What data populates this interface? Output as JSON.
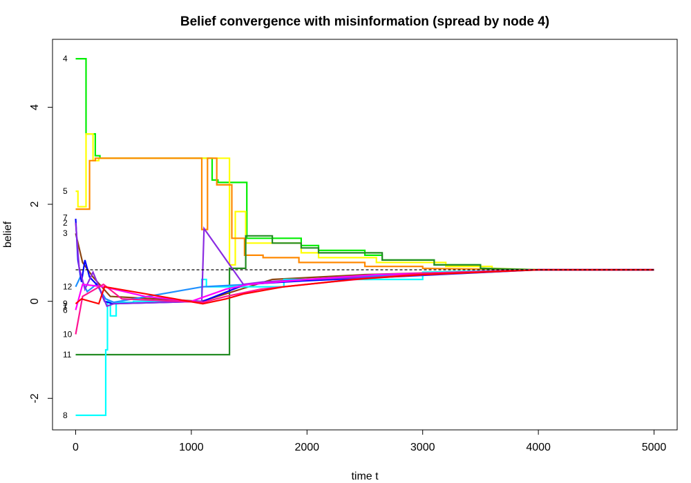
{
  "chart_data": {
    "type": "line",
    "title": "Belief convergence with misinformation (spread by node 4)",
    "xlabel": "time t",
    "ylabel": "belief",
    "xlim": [
      -200,
      5200
    ],
    "ylim": [
      -2.65,
      5.4
    ],
    "x_ticks": [
      0,
      1000,
      2000,
      3000,
      4000,
      5000
    ],
    "x_tick_labels": [
      "0",
      "1000",
      "2000",
      "3000",
      "4000",
      "5000"
    ],
    "y_ticks": [
      -2,
      0,
      2,
      4
    ],
    "y_tick_labels": [
      "-2",
      "0",
      "2",
      "4"
    ],
    "grid": false,
    "legend": "none",
    "reference_line": {
      "y": 0.65,
      "style": "dashed",
      "color": "#000000"
    },
    "node_labels": [
      {
        "text": "4",
        "y": 5.0
      },
      {
        "text": "5",
        "y": 2.27
      },
      {
        "text": "7",
        "y": 1.72
      },
      {
        "text": "2",
        "y": 1.62
      },
      {
        "text": "3",
        "y": 1.4
      },
      {
        "text": "12",
        "y": 0.3
      },
      {
        "text": "9",
        "y": -0.05
      },
      {
        "text": "1",
        "y": -0.1
      },
      {
        "text": "6",
        "y": -0.18
      },
      {
        "text": "10",
        "y": -0.68
      },
      {
        "text": "11",
        "y": -1.1
      },
      {
        "text": "8",
        "y": -2.35
      }
    ],
    "series": [
      {
        "color": "#00ee00",
        "x": [
          0,
          90,
          90,
          170,
          170,
          210,
          210,
          1160,
          1160,
          1180,
          1180,
          1230,
          1230,
          1480,
          1480,
          1950,
          1950,
          2100,
          2100,
          2500,
          2500,
          2650,
          2650,
          3100,
          3100,
          3500,
          3500,
          4000,
          5000
        ],
        "y": [
          5.0,
          5.0,
          3.45,
          3.45,
          3.0,
          3.0,
          2.95,
          2.95,
          2.95,
          2.95,
          2.5,
          2.5,
          2.45,
          2.45,
          1.3,
          1.3,
          1.15,
          1.15,
          1.05,
          1.05,
          0.95,
          0.95,
          0.85,
          0.85,
          0.75,
          0.75,
          0.68,
          0.65,
          0.65
        ]
      },
      {
        "color": "#ffff00",
        "x": [
          0,
          0,
          20,
          20,
          90,
          90,
          150,
          150,
          200,
          200,
          1330,
          1330,
          1380,
          1380,
          1470,
          1470,
          1950,
          1950,
          2100,
          2100,
          2600,
          2600,
          3200,
          3200,
          3600,
          3600,
          4000,
          5000
        ],
        "y": [
          2.27,
          2.27,
          2.27,
          1.95,
          1.95,
          3.45,
          3.45,
          2.9,
          2.9,
          2.95,
          2.95,
          0.75,
          0.75,
          1.85,
          1.85,
          1.2,
          1.2,
          1.0,
          1.0,
          0.9,
          0.9,
          0.8,
          0.8,
          0.72,
          0.72,
          0.68,
          0.65,
          0.65
        ]
      },
      {
        "color": "#ff8800",
        "x": [
          0,
          0,
          120,
          120,
          170,
          170,
          1090,
          1090,
          1140,
          1140,
          1220,
          1220,
          1350,
          1350,
          1460,
          1460,
          1620,
          1620,
          1930,
          1930,
          2500,
          2500,
          3000,
          3000,
          4000,
          5000
        ],
        "y": [
          1.9,
          1.9,
          1.9,
          2.9,
          2.9,
          2.95,
          2.95,
          1.48,
          1.48,
          2.95,
          2.95,
          2.4,
          2.4,
          1.3,
          1.3,
          0.95,
          0.95,
          0.9,
          0.9,
          0.8,
          0.8,
          0.72,
          0.72,
          0.68,
          0.65,
          0.65
        ]
      },
      {
        "color": "#8b4513",
        "x": [
          0,
          0,
          25,
          25,
          60,
          60,
          150,
          150,
          300,
          300,
          1090,
          1090,
          1700,
          1700,
          2500,
          2500,
          4000,
          5000
        ],
        "y": [
          1.4,
          1.4,
          1.15,
          1.15,
          0.8,
          0.8,
          0.5,
          0.5,
          0.1,
          0.1,
          0.0,
          0.0,
          0.45,
          0.45,
          0.55,
          0.55,
          0.65,
          0.65
        ]
      },
      {
        "color": "#228b22",
        "x": [
          0,
          1330,
          1330,
          1470,
          1470,
          1700,
          1700,
          1950,
          1950,
          2100,
          2100,
          2650,
          2650,
          3100,
          3100,
          3500,
          3500,
          4000,
          5000
        ],
        "y": [
          -1.1,
          -1.1,
          0.68,
          0.68,
          1.35,
          1.35,
          1.2,
          1.2,
          1.1,
          1.1,
          1.0,
          1.0,
          0.85,
          0.85,
          0.75,
          0.75,
          0.68,
          0.65,
          0.65
        ]
      },
      {
        "color": "#00ffff",
        "x": [
          0,
          260,
          260,
          275,
          275,
          300,
          300,
          350,
          350,
          500,
          500,
          1090,
          1090,
          1130,
          1130,
          1800,
          1800,
          3000,
          3000,
          4000,
          5000
        ],
        "y": [
          -2.35,
          -2.35,
          -1.0,
          -1.0,
          0.0,
          0.0,
          -0.3,
          -0.3,
          -0.02,
          -0.02,
          0.0,
          0.0,
          0.45,
          0.45,
          0.3,
          0.3,
          0.45,
          0.45,
          0.6,
          0.65,
          0.65
        ]
      },
      {
        "color": "#1e90ff",
        "x": [
          0,
          0,
          40,
          40,
          100,
          100,
          180,
          180,
          260,
          260,
          330,
          330,
          1100,
          1100,
          1500,
          1500,
          2100,
          2100,
          3000,
          3000,
          4000,
          5000
        ],
        "y": [
          0.3,
          0.3,
          0.5,
          0.5,
          0.2,
          0.2,
          0.35,
          0.35,
          0.05,
          0.05,
          -0.02,
          -0.02,
          0.3,
          0.3,
          0.35,
          0.35,
          0.45,
          0.45,
          0.58,
          0.58,
          0.65,
          0.65
        ]
      },
      {
        "color": "#0000ff",
        "x": [
          0,
          0,
          20,
          20,
          50,
          50,
          80,
          80,
          120,
          120,
          200,
          200,
          250,
          250,
          320,
          320,
          1100,
          1100,
          1470,
          1470,
          1960,
          1960,
          2700,
          2700,
          4000,
          5000
        ],
        "y": [
          1.7,
          1.7,
          0.85,
          0.85,
          0.4,
          0.4,
          0.85,
          0.85,
          0.5,
          0.5,
          0.3,
          0.3,
          0.0,
          0.0,
          -0.05,
          -0.05,
          0.0,
          0.0,
          0.35,
          0.35,
          0.42,
          0.42,
          0.5,
          0.5,
          0.65,
          0.65
        ]
      },
      {
        "color": "#8a2be2",
        "x": [
          0,
          0,
          30,
          30,
          80,
          80,
          150,
          150,
          270,
          270,
          330,
          330,
          1090,
          1090,
          1110,
          1110,
          1450,
          1450,
          1620,
          1620,
          2000,
          2000,
          2600,
          2600,
          4000,
          5000
        ],
        "y": [
          1.62,
          1.62,
          0.7,
          0.7,
          0.25,
          0.25,
          0.6,
          0.6,
          -0.1,
          -0.1,
          -0.05,
          -0.05,
          0.0,
          0.0,
          1.5,
          1.5,
          0.35,
          0.35,
          0.4,
          0.4,
          0.45,
          0.45,
          0.5,
          0.5,
          0.65,
          0.65
        ]
      },
      {
        "color": "#ff00ff",
        "x": [
          0,
          0,
          60,
          60,
          240,
          240,
          600,
          600,
          1000,
          1000,
          1300,
          1300,
          1500,
          1500,
          2000,
          2000,
          2600,
          2600,
          4000,
          5000
        ],
        "y": [
          -0.18,
          -0.18,
          0.35,
          0.35,
          0.3,
          0.3,
          0.1,
          0.1,
          0.0,
          0.0,
          0.25,
          0.25,
          0.35,
          0.35,
          0.45,
          0.45,
          0.55,
          0.55,
          0.65,
          0.65
        ]
      },
      {
        "color": "#ff1493",
        "x": [
          0,
          0,
          60,
          60,
          240,
          240,
          400,
          400,
          1100,
          1100,
          1300,
          1300,
          1600,
          1600,
          2200,
          2200,
          3000,
          3000,
          4000,
          5000
        ],
        "y": [
          -0.68,
          -0.68,
          0.1,
          0.1,
          0.35,
          0.35,
          0.05,
          0.05,
          -0.02,
          -0.02,
          0.1,
          0.1,
          0.25,
          0.25,
          0.4,
          0.4,
          0.58,
          0.58,
          0.65,
          0.65
        ]
      },
      {
        "color": "#ff0000",
        "x": [
          0,
          0,
          50,
          50,
          200,
          200,
          250,
          250,
          1100,
          1100,
          1300,
          1300,
          1450,
          1450,
          1800,
          1800,
          2400,
          2400,
          3000,
          3000,
          4000,
          5000
        ],
        "y": [
          -0.05,
          -0.05,
          0.05,
          0.05,
          -0.05,
          -0.05,
          0.3,
          0.3,
          -0.05,
          -0.05,
          0.05,
          0.05,
          0.15,
          0.15,
          0.3,
          0.3,
          0.45,
          0.45,
          0.55,
          0.55,
          0.65,
          0.65
        ]
      }
    ]
  }
}
